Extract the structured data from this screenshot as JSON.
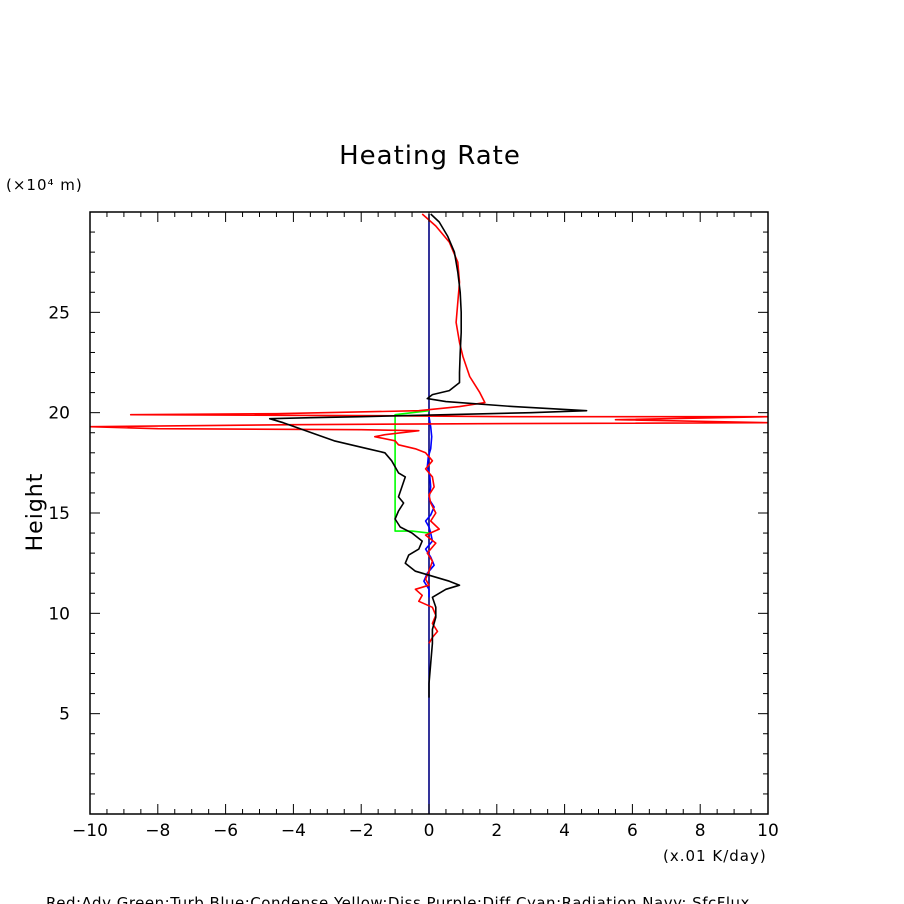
{
  "chart_data": {
    "type": "line",
    "title": "Heating Rate",
    "ylabel": "Height",
    "y_units": "(×10⁴ m)",
    "x_units": "(x.01 K/day)",
    "xlim": [
      -10,
      10
    ],
    "ylim": [
      0,
      30
    ],
    "x_ticks": [
      -10,
      -8,
      -6,
      -4,
      -2,
      0,
      2,
      4,
      6,
      8,
      10
    ],
    "x_tick_labels": [
      "−10",
      "−8",
      "−6",
      "−4",
      "−2",
      "0",
      "2",
      "4",
      "6",
      "8",
      "10"
    ],
    "y_ticks": [
      5,
      10,
      15,
      20,
      25
    ],
    "y_tick_labels": [
      "5",
      "10",
      "15",
      "20",
      "25"
    ],
    "grid": false,
    "legend_text": "Red:Adv  Green:Turb  Blue:Condense  Yellow:Diss  Purple:Diff  Cyan:Radiation  Navy: SfcFlux",
    "series": [
      {
        "name": "Navy: SfcFlux",
        "color": "#000080",
        "points": [
          [
            0,
            0
          ],
          [
            0,
            29.9
          ]
        ]
      },
      {
        "name": "Green:Turb",
        "color": "#00ff00",
        "points": [
          [
            0,
            20.1
          ],
          [
            -0.5,
            20.0
          ],
          [
            -1.0,
            19.9
          ],
          [
            -1.0,
            14.1
          ],
          [
            -0.5,
            14.1
          ],
          [
            0,
            14.0
          ]
        ]
      },
      {
        "name": "Blue:Condense",
        "color": "#0000ff",
        "points": [
          [
            0,
            19.8
          ],
          [
            0.05,
            19.3
          ],
          [
            0.08,
            18.8
          ],
          [
            0.05,
            18.2
          ],
          [
            -0.02,
            17.8
          ],
          [
            -0.05,
            17.3
          ],
          [
            0.02,
            16.9
          ],
          [
            0.05,
            16.3
          ],
          [
            0.0,
            15.7
          ],
          [
            0.15,
            15.3
          ],
          [
            0.05,
            14.9
          ],
          [
            -0.1,
            14.6
          ],
          [
            0.0,
            14.3
          ],
          [
            0.05,
            14.0
          ],
          [
            0.1,
            13.6
          ],
          [
            -0.1,
            13.2
          ],
          [
            0.05,
            12.8
          ],
          [
            0.15,
            12.4
          ],
          [
            -0.05,
            12.0
          ],
          [
            -0.15,
            11.6
          ],
          [
            0.0,
            11.2
          ],
          [
            0.0,
            10.8
          ]
        ]
      },
      {
        "name": "Red:Adv",
        "color": "#ff0000",
        "points": [
          [
            -0.2,
            29.9
          ],
          [
            0.2,
            29.3
          ],
          [
            0.6,
            28.5
          ],
          [
            0.85,
            27.5
          ],
          [
            0.9,
            26.5
          ],
          [
            0.85,
            25.5
          ],
          [
            0.8,
            24.5
          ],
          [
            0.9,
            23.5
          ],
          [
            1.0,
            22.8
          ],
          [
            1.2,
            21.8
          ],
          [
            1.5,
            21.0
          ],
          [
            1.65,
            20.5
          ],
          [
            0.9,
            20.3
          ],
          [
            -0.3,
            20.1
          ],
          [
            -4.5,
            19.95
          ],
          [
            -8.8,
            19.9
          ],
          [
            -1.5,
            19.85
          ],
          [
            2.5,
            19.8
          ],
          [
            10.0,
            19.8
          ],
          [
            5.5,
            19.65
          ],
          [
            10.0,
            19.5
          ],
          [
            1.5,
            19.45
          ],
          [
            -4.0,
            19.4
          ],
          [
            -10.0,
            19.3
          ],
          [
            -8.0,
            19.2
          ],
          [
            -2.0,
            19.15
          ],
          [
            -0.3,
            19.1
          ],
          [
            -1.3,
            18.9
          ],
          [
            -1.6,
            18.8
          ],
          [
            -1.0,
            18.6
          ],
          [
            -0.9,
            18.4
          ],
          [
            -0.4,
            18.2
          ],
          [
            -0.1,
            18.0
          ],
          [
            0.1,
            17.6
          ],
          [
            -0.1,
            17.2
          ],
          [
            0.1,
            16.8
          ],
          [
            0.15,
            16.3
          ],
          [
            0.0,
            15.9
          ],
          [
            0.05,
            15.5
          ],
          [
            0.2,
            15.0
          ],
          [
            0.05,
            14.6
          ],
          [
            0.3,
            14.2
          ],
          [
            -0.1,
            13.9
          ],
          [
            0.2,
            13.5
          ],
          [
            -0.05,
            13.0
          ],
          [
            0.1,
            12.6
          ],
          [
            0.0,
            12.1
          ],
          [
            -0.1,
            11.7
          ],
          [
            0.0,
            11.4
          ],
          [
            -0.4,
            11.2
          ],
          [
            -0.2,
            10.9
          ],
          [
            -0.3,
            10.6
          ],
          [
            0.1,
            10.3
          ],
          [
            0.2,
            9.9
          ],
          [
            0.1,
            9.5
          ],
          [
            0.25,
            9.1
          ],
          [
            0.1,
            8.8
          ],
          [
            0.0,
            8.5
          ]
        ]
      },
      {
        "name": "Black",
        "color": "#000000",
        "points": [
          [
            0.05,
            29.9
          ],
          [
            0.3,
            29.5
          ],
          [
            0.55,
            28.8
          ],
          [
            0.75,
            28.0
          ],
          [
            0.85,
            27.0
          ],
          [
            0.92,
            26.0
          ],
          [
            0.95,
            25.0
          ],
          [
            0.95,
            24.0
          ],
          [
            0.92,
            23.0
          ],
          [
            0.9,
            22.0
          ],
          [
            0.9,
            21.5
          ],
          [
            0.6,
            21.1
          ],
          [
            0.1,
            20.9
          ],
          [
            -0.05,
            20.7
          ],
          [
            0.5,
            20.55
          ],
          [
            2.5,
            20.3
          ],
          [
            4.65,
            20.1
          ],
          [
            3.0,
            20.0
          ],
          [
            0.5,
            19.9
          ],
          [
            -2.0,
            19.8
          ],
          [
            -3.5,
            19.75
          ],
          [
            -4.7,
            19.7
          ],
          [
            -4.3,
            19.5
          ],
          [
            -3.8,
            19.2
          ],
          [
            -3.3,
            18.9
          ],
          [
            -2.8,
            18.6
          ],
          [
            -2.3,
            18.4
          ],
          [
            -1.8,
            18.2
          ],
          [
            -1.3,
            18.0
          ],
          [
            -1.1,
            17.6
          ],
          [
            -0.9,
            17.0
          ],
          [
            -0.7,
            16.8
          ],
          [
            -0.8,
            16.3
          ],
          [
            -0.9,
            15.8
          ],
          [
            -0.75,
            15.5
          ],
          [
            -0.9,
            15.1
          ],
          [
            -1.0,
            14.7
          ],
          [
            -0.85,
            14.3
          ],
          [
            -0.5,
            14.0
          ],
          [
            -0.2,
            13.6
          ],
          [
            -0.3,
            13.2
          ],
          [
            -0.6,
            12.9
          ],
          [
            -0.7,
            12.5
          ],
          [
            -0.4,
            12.1
          ],
          [
            0.0,
            11.9
          ],
          [
            0.6,
            11.6
          ],
          [
            0.9,
            11.4
          ],
          [
            0.5,
            11.2
          ],
          [
            0.1,
            10.8
          ],
          [
            0.2,
            10.3
          ],
          [
            0.2,
            9.8
          ],
          [
            0.1,
            9.2
          ],
          [
            0.1,
            8.5
          ],
          [
            0.05,
            7.5
          ],
          [
            0.0,
            6.5
          ],
          [
            0.0,
            5.8
          ]
        ]
      }
    ]
  }
}
